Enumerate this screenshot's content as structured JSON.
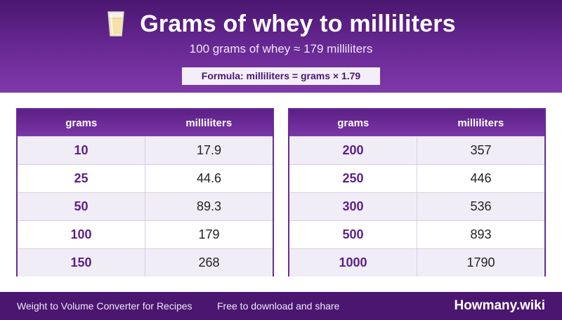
{
  "header": {
    "icon": "glass-of-milk-icon",
    "title": "Grams of whey to milliliters",
    "subtitle": "100 grams of whey ≈ 179 milliliters",
    "formula": "Formula: milliliters = grams × 1.79"
  },
  "tables": [
    {
      "col_grams": "grams",
      "col_ml": "milliliters",
      "rows": [
        {
          "grams": "10",
          "ml": "17.9"
        },
        {
          "grams": "25",
          "ml": "44.6"
        },
        {
          "grams": "50",
          "ml": "89.3"
        },
        {
          "grams": "100",
          "ml": "179"
        },
        {
          "grams": "150",
          "ml": "268"
        }
      ]
    },
    {
      "col_grams": "grams",
      "col_ml": "milliliters",
      "rows": [
        {
          "grams": "200",
          "ml": "357"
        },
        {
          "grams": "250",
          "ml": "446"
        },
        {
          "grams": "300",
          "ml": "536"
        },
        {
          "grams": "500",
          "ml": "893"
        },
        {
          "grams": "1000",
          "ml": "1790"
        }
      ]
    }
  ],
  "footer": {
    "left": "Weight to Volume Converter for Recipes",
    "middle": "Free to download and share",
    "brand": "Howmany.wiki"
  },
  "colors": {
    "header_dark": "#4a1670",
    "header_light": "#7e3aa8",
    "accent_text": "#5b1f86",
    "row_alt": "#f1edf7"
  }
}
